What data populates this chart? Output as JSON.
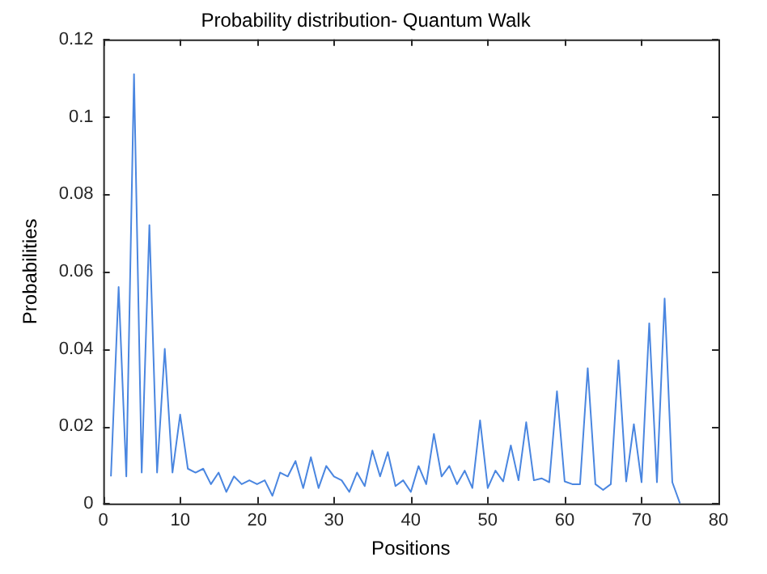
{
  "chart_data": {
    "type": "line",
    "title": "Probability distribution- Quantum Walk",
    "xlabel": "Positions",
    "ylabel": "Probabilities",
    "x": [
      1,
      2,
      3,
      4,
      5,
      6,
      7,
      8,
      9,
      10,
      11,
      12,
      13,
      14,
      15,
      16,
      17,
      18,
      19,
      20,
      21,
      22,
      23,
      24,
      25,
      26,
      27,
      28,
      29,
      30,
      31,
      32,
      33,
      34,
      35,
      36,
      37,
      38,
      39,
      40,
      41,
      42,
      43,
      44,
      45,
      46,
      47,
      48,
      49,
      50,
      51,
      52,
      53,
      54,
      55,
      56,
      57,
      58,
      59,
      60,
      61,
      62,
      63,
      64,
      65,
      66,
      67,
      68,
      69,
      70,
      71,
      72,
      73,
      74,
      75
    ],
    "series": [
      {
        "color": "#4a86e0",
        "values": [
          0.007,
          0.056,
          0.007,
          0.111,
          0.008,
          0.072,
          0.008,
          0.04,
          0.008,
          0.023,
          0.009,
          0.008,
          0.009,
          0.005,
          0.008,
          0.003,
          0.007,
          0.005,
          0.006,
          0.005,
          0.006,
          0.002,
          0.008,
          0.007,
          0.011,
          0.004,
          0.012,
          0.004,
          0.0097,
          0.007,
          0.006,
          0.003,
          0.008,
          0.0045,
          0.0137,
          0.007,
          0.0133,
          0.0045,
          0.006,
          0.003,
          0.0097,
          0.005,
          0.018,
          0.007,
          0.0097,
          0.005,
          0.0085,
          0.004,
          0.0215,
          0.004,
          0.0085,
          0.0057,
          0.015,
          0.006,
          0.021,
          0.006,
          0.0065,
          0.0055,
          0.029,
          0.0057,
          0.005,
          0.005,
          0.035,
          0.005,
          0.0035,
          0.005,
          0.037,
          0.0057,
          0.0205,
          0.0055,
          0.0466,
          0.0055,
          0.053,
          0.0055,
          0
        ]
      }
    ],
    "xlim": [
      0,
      80
    ],
    "xticks": [
      0,
      10,
      20,
      30,
      40,
      50,
      60,
      70,
      80
    ],
    "ylim": [
      0,
      0.12
    ],
    "yticks": [
      0,
      0.02,
      0.04,
      0.06,
      0.08,
      0.1,
      0.12
    ],
    "grid": false,
    "legend": false,
    "marker": "none",
    "line_style": "solid"
  }
}
